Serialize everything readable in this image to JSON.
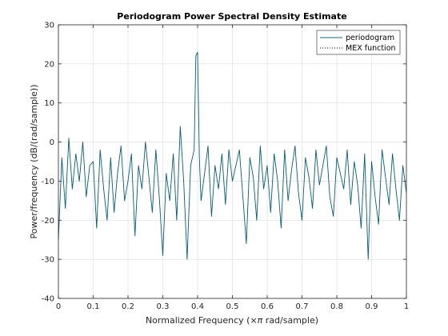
{
  "chart_data": {
    "type": "line",
    "title": "Periodogram Power Spectral Density Estimate",
    "xlabel_prefix": "Normalized Frequency  (",
    "xlabel_symbol": "×π",
    "xlabel_suffix": " rad/sample)",
    "ylabel": "Power/frequency (dB/(rad/sample))",
    "xlim": [
      0,
      1
    ],
    "ylim": [
      -40,
      30
    ],
    "xticks": [
      0,
      0.1,
      0.2,
      0.3,
      0.4,
      0.5,
      0.6,
      0.7,
      0.8,
      0.9,
      1
    ],
    "xtick_labels": [
      "0",
      "0.1",
      "0.2",
      "0.3",
      "0.4",
      "0.5",
      "0.6",
      "0.7",
      "0.8",
      "0.9",
      "1"
    ],
    "yticks": [
      -40,
      -30,
      -20,
      -10,
      0,
      10,
      20,
      30
    ],
    "ytick_labels": [
      "-40",
      "-30",
      "-20",
      "-10",
      "0",
      "10",
      "20",
      "30"
    ],
    "grid": true,
    "legend_position": "top-right",
    "colors": {
      "periodogram": "#0a6882",
      "mex": "#000000",
      "grid": "#dcdcdc",
      "axis": "#262626"
    },
    "series": [
      {
        "name": "periodogram",
        "style": "solid",
        "x": [
          0,
          0.01,
          0.02,
          0.03,
          0.04,
          0.05,
          0.06,
          0.07,
          0.08,
          0.09,
          0.1,
          0.11,
          0.12,
          0.13,
          0.14,
          0.15,
          0.16,
          0.17,
          0.18,
          0.19,
          0.2,
          0.21,
          0.22,
          0.23,
          0.24,
          0.25,
          0.26,
          0.27,
          0.28,
          0.29,
          0.3,
          0.31,
          0.32,
          0.33,
          0.34,
          0.35,
          0.36,
          0.37,
          0.38,
          0.39,
          0.395,
          0.4,
          0.405,
          0.41,
          0.42,
          0.43,
          0.44,
          0.45,
          0.46,
          0.47,
          0.48,
          0.49,
          0.5,
          0.51,
          0.52,
          0.53,
          0.54,
          0.55,
          0.56,
          0.57,
          0.58,
          0.59,
          0.6,
          0.61,
          0.62,
          0.63,
          0.64,
          0.65,
          0.66,
          0.67,
          0.68,
          0.69,
          0.7,
          0.71,
          0.72,
          0.73,
          0.74,
          0.75,
          0.76,
          0.77,
          0.78,
          0.79,
          0.8,
          0.81,
          0.82,
          0.83,
          0.84,
          0.85,
          0.86,
          0.87,
          0.88,
          0.89,
          0.9,
          0.91,
          0.92,
          0.93,
          0.94,
          0.95,
          0.96,
          0.97,
          0.98,
          0.99,
          1
        ],
        "y": [
          -25,
          -4,
          -17,
          1,
          -12,
          -3,
          -10,
          0,
          -14,
          -6,
          -5,
          -22,
          -2,
          -12,
          -20,
          -4,
          -18,
          -8,
          -1,
          -15,
          -10,
          -3,
          -24,
          -6,
          -12,
          0,
          -9,
          -18,
          -2,
          -14,
          -29,
          -8,
          -15,
          -3,
          -20,
          4,
          -10,
          -30,
          -6,
          -2,
          22,
          23,
          -4,
          -15,
          -8,
          -1,
          -19,
          -6,
          -12,
          -3,
          -16,
          -2,
          -10,
          -6,
          -2,
          -14,
          -26,
          -4,
          -9,
          -20,
          -1,
          -12,
          -6,
          -18,
          -3,
          -10,
          -22,
          -2,
          -15,
          -7,
          -1,
          -13,
          -20,
          -4,
          -9,
          -17,
          -2,
          -11,
          -6,
          -1,
          -14,
          -19,
          -4,
          -8,
          -12,
          -2,
          -16,
          -5,
          -11,
          -22,
          -3,
          -30,
          -5,
          -14,
          -21,
          -2,
          -9,
          -16,
          -3,
          -12,
          -20,
          -6,
          -13
        ]
      },
      {
        "name": "MEX function",
        "style": "dotted",
        "x": [
          0,
          0.01,
          0.02,
          0.03,
          0.04,
          0.05,
          0.06,
          0.07,
          0.08,
          0.09,
          0.1,
          0.11,
          0.12,
          0.13,
          0.14,
          0.15,
          0.16,
          0.17,
          0.18,
          0.19,
          0.2,
          0.21,
          0.22,
          0.23,
          0.24,
          0.25,
          0.26,
          0.27,
          0.28,
          0.29,
          0.3,
          0.31,
          0.32,
          0.33,
          0.34,
          0.35,
          0.36,
          0.37,
          0.38,
          0.39,
          0.395,
          0.4,
          0.405,
          0.41,
          0.42,
          0.43,
          0.44,
          0.45,
          0.46,
          0.47,
          0.48,
          0.49,
          0.5,
          0.51,
          0.52,
          0.53,
          0.54,
          0.55,
          0.56,
          0.57,
          0.58,
          0.59,
          0.6,
          0.61,
          0.62,
          0.63,
          0.64,
          0.65,
          0.66,
          0.67,
          0.68,
          0.69,
          0.7,
          0.71,
          0.72,
          0.73,
          0.74,
          0.75,
          0.76,
          0.77,
          0.78,
          0.79,
          0.8,
          0.81,
          0.82,
          0.83,
          0.84,
          0.85,
          0.86,
          0.87,
          0.88,
          0.89,
          0.9,
          0.91,
          0.92,
          0.93,
          0.94,
          0.95,
          0.96,
          0.97,
          0.98,
          0.99,
          1
        ],
        "y": [
          -25,
          -4,
          -17,
          1,
          -12,
          -3,
          -10,
          0,
          -14,
          -6,
          -5,
          -22,
          -2,
          -12,
          -20,
          -4,
          -18,
          -8,
          -1,
          -15,
          -10,
          -3,
          -24,
          -6,
          -12,
          0,
          -9,
          -18,
          -2,
          -14,
          -29,
          -8,
          -15,
          -3,
          -20,
          4,
          -10,
          -30,
          -6,
          -2,
          22,
          23,
          -4,
          -15,
          -8,
          -1,
          -19,
          -6,
          -12,
          -3,
          -16,
          -2,
          -10,
          -6,
          -2,
          -14,
          -26,
          -4,
          -9,
          -20,
          -1,
          -12,
          -6,
          -18,
          -3,
          -10,
          -22,
          -2,
          -15,
          -7,
          -1,
          -13,
          -20,
          -4,
          -9,
          -17,
          -2,
          -11,
          -6,
          -1,
          -14,
          -19,
          -4,
          -8,
          -12,
          -2,
          -16,
          -5,
          -11,
          -22,
          -3,
          -30,
          -5,
          -14,
          -21,
          -2,
          -9,
          -16,
          -3,
          -12,
          -20,
          -6,
          -13
        ]
      }
    ]
  }
}
